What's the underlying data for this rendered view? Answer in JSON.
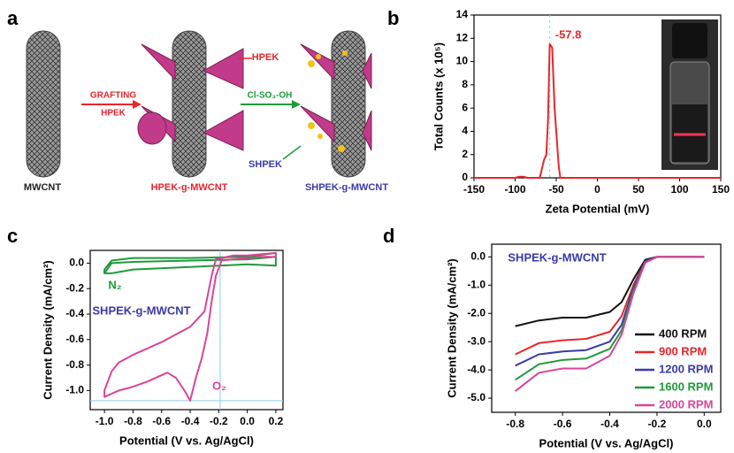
{
  "diagram": {
    "panel_label": "a",
    "labels": [
      {
        "text": "MWCNT",
        "color": "#222222"
      },
      {
        "text": "GRAFTING",
        "color": "#e8262b"
      },
      {
        "text": "HPEK",
        "color": "#e8262b"
      },
      {
        "text": "HPEK",
        "color": "#e8262b"
      },
      {
        "text": "HPEK-g-MWCNT",
        "color": "#e8262b"
      },
      {
        "text": "Cl-SO₃-OH",
        "color": "#1f9a3a"
      },
      {
        "text": "SHPEK",
        "color": "#3a3aa8"
      },
      {
        "text": "SHPEK-g-MWCNT",
        "color": "#3a3aa8"
      }
    ]
  },
  "chart_data": [
    {
      "type": "line",
      "panel_label": "b",
      "x_label": "Zeta Potential (mV)",
      "y_label": "Total Counts (x 10⁵)",
      "xlim": [
        -150,
        150
      ],
      "ylim": [
        0,
        14
      ],
      "xticks": [
        -150,
        -100,
        -50,
        0,
        50,
        100,
        150
      ],
      "yticks": [
        0,
        2,
        4,
        6,
        8,
        10,
        12,
        14
      ],
      "peak": -57.8,
      "peak_color": "#e8262b",
      "series": [
        {
          "color": "#e8262b",
          "x": [
            -150,
            -100,
            -95,
            -90,
            -85,
            -70,
            -65,
            -62,
            -60,
            -58,
            -55,
            -52,
            -50,
            -47,
            -45,
            0,
            150
          ],
          "values": [
            0,
            0,
            0.1,
            0.1,
            0,
            0,
            1.5,
            2,
            5,
            11.5,
            11.2,
            6,
            4,
            1,
            0,
            0,
            0
          ]
        }
      ]
    },
    {
      "type": "line",
      "panel_label": "c",
      "x_label": "Potential (V vs. Ag/AgCl)",
      "y_label": "Current Density (mA/cm²)",
      "xlim": [
        -1.1,
        0.25
      ],
      "ylim": [
        -1.15,
        0.1
      ],
      "xticks": [
        {
          "value": -1,
          "label": "-1.0"
        },
        -0.8,
        -0.6,
        -0.4,
        -0.2,
        {
          "value": 0,
          "label": "0.0"
        },
        0.2
      ],
      "yticks": [
        {
          "value": 0,
          "label": "0.0"
        },
        -0.2,
        -0.4,
        -0.6,
        -0.8,
        {
          "value": -1,
          "label": "-1.0"
        }
      ],
      "reference_x": -0.19,
      "reference_y": -1.08,
      "annotations": [
        {
          "text": "SHPEK-g-MWCNT",
          "color": "#3a3aa8"
        },
        {
          "text": "N₂",
          "color": "#1f9a3a"
        },
        {
          "text": "O₂",
          "color": "#d9449a"
        }
      ],
      "series": [
        {
          "color": "#1f9a3a",
          "x": [
            0.2,
            0,
            -0.4,
            -0.8,
            -0.95,
            -1.0,
            -1.0,
            -0.95,
            -0.8,
            -0.4,
            0,
            0.2,
            0.2,
            0,
            -0.4,
            -0.8,
            -0.95,
            -1.0
          ],
          "values": [
            0.05,
            0.03,
            0.02,
            0.01,
            0,
            -0.08,
            -0.05,
            0.02,
            0.04,
            0.04,
            0.05,
            0.08,
            -0.02,
            -0.01,
            -0.03,
            -0.05,
            -0.08,
            -0.08
          ]
        },
        {
          "color": "#d9449a",
          "x": [
            0.2,
            0.1,
            0,
            -0.1,
            -0.18,
            -0.22,
            -0.25,
            -0.28,
            -0.32,
            -0.36,
            -0.4,
            -0.44,
            -0.5,
            -0.56,
            -0.6,
            -0.7,
            -0.8,
            -0.9,
            -1.0,
            -1.0,
            -0.95,
            -0.9,
            -0.8,
            -0.6,
            -0.4,
            -0.3,
            -0.25,
            -0.22,
            -0.1,
            0,
            0.2,
            0.2
          ],
          "values": [
            0.05,
            0.05,
            0.04,
            0.03,
            0.02,
            -0.1,
            -0.3,
            -0.55,
            -0.75,
            -0.9,
            -1.08,
            -1.0,
            -0.9,
            -0.86,
            -0.88,
            -0.93,
            -0.97,
            -1.0,
            -1.05,
            -1.0,
            -0.85,
            -0.78,
            -0.72,
            -0.62,
            -0.5,
            -0.38,
            -0.1,
            0.03,
            0.06,
            0.06,
            0.08,
            0.05
          ]
        }
      ]
    },
    {
      "type": "line",
      "panel_label": "d",
      "x_label": "Potential (V vs. Ag/AgCl)",
      "y_label": "Current Density (mA/cm²)",
      "xlim": [
        -0.9,
        0.07
      ],
      "ylim": [
        -5.5,
        0.45
      ],
      "xticks": [
        -0.8,
        -0.6,
        -0.4,
        -0.2,
        {
          "value": 0,
          "label": "0.0"
        }
      ],
      "yticks": [
        {
          "value": 0,
          "label": "0.0"
        },
        {
          "value": -1,
          "label": "-1.0"
        },
        {
          "value": -2,
          "label": "-2.0"
        },
        {
          "value": -3,
          "label": "-3.0"
        },
        {
          "value": -4,
          "label": "-4.0"
        },
        {
          "value": -5,
          "label": "-5.0"
        }
      ],
      "annotations": [
        {
          "text": "SHPEK-g-MWCNT",
          "color": "#3a3aa8"
        }
      ],
      "x": [
        -0.8,
        -0.7,
        -0.6,
        -0.5,
        -0.4,
        -0.35,
        -0.3,
        -0.25,
        -0.2,
        -0.1,
        0
      ],
      "series": [
        {
          "name": "400 RPM",
          "color": "#111111",
          "values": [
            -2.45,
            -2.25,
            -2.15,
            -2.15,
            -1.95,
            -1.6,
            -0.8,
            -0.1,
            0,
            0,
            0
          ]
        },
        {
          "name": "900 RPM",
          "color": "#e8262b",
          "values": [
            -3.45,
            -3.05,
            -2.95,
            -2.9,
            -2.65,
            -2.1,
            -1.0,
            -0.15,
            0,
            0,
            0
          ]
        },
        {
          "name": "1200 RPM",
          "color": "#3a3aa8",
          "values": [
            -3.85,
            -3.45,
            -3.35,
            -3.3,
            -3.0,
            -2.4,
            -1.1,
            -0.15,
            0,
            0,
            0
          ]
        },
        {
          "name": "1600 RPM",
          "color": "#1f9a3a",
          "values": [
            -4.35,
            -3.8,
            -3.65,
            -3.6,
            -3.25,
            -2.6,
            -1.2,
            -0.2,
            0,
            0,
            0
          ]
        },
        {
          "name": "2000 RPM",
          "color": "#d9449a",
          "values": [
            -4.75,
            -4.1,
            -3.95,
            -3.95,
            -3.5,
            -2.75,
            -1.3,
            -0.2,
            0,
            0,
            0
          ]
        }
      ]
    }
  ]
}
